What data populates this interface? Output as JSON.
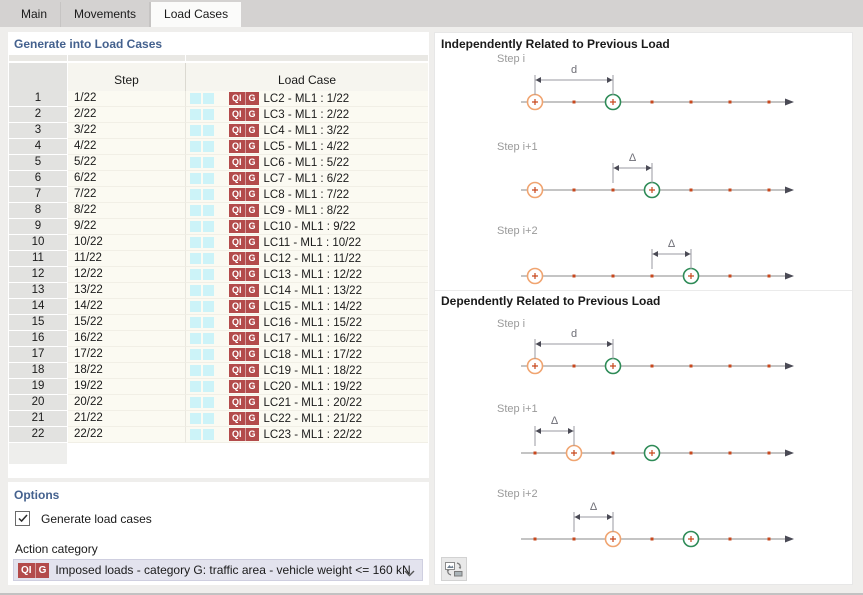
{
  "tabs": [
    {
      "label": "Main",
      "active": false
    },
    {
      "label": "Movements",
      "active": false
    },
    {
      "label": "Load Cases",
      "active": true
    }
  ],
  "table": {
    "title": "Generate into Load Cases",
    "col_step": "Step",
    "col_load_case": "Load Case",
    "badge": {
      "left": "QI",
      "right": "G"
    },
    "rows": [
      {
        "n": "1",
        "step": "1/22",
        "load_case": "LC2 - ML1 : 1/22"
      },
      {
        "n": "2",
        "step": "2/22",
        "load_case": "LC3 - ML1 : 2/22"
      },
      {
        "n": "3",
        "step": "3/22",
        "load_case": "LC4 - ML1 : 3/22"
      },
      {
        "n": "4",
        "step": "4/22",
        "load_case": "LC5 - ML1 : 4/22"
      },
      {
        "n": "5",
        "step": "5/22",
        "load_case": "LC6 - ML1 : 5/22"
      },
      {
        "n": "6",
        "step": "6/22",
        "load_case": "LC7 - ML1 : 6/22"
      },
      {
        "n": "7",
        "step": "7/22",
        "load_case": "LC8 - ML1 : 7/22"
      },
      {
        "n": "8",
        "step": "8/22",
        "load_case": "LC9 - ML1 : 8/22"
      },
      {
        "n": "9",
        "step": "9/22",
        "load_case": "LC10 - ML1 : 9/22"
      },
      {
        "n": "10",
        "step": "10/22",
        "load_case": "LC11 - ML1 : 10/22"
      },
      {
        "n": "11",
        "step": "11/22",
        "load_case": "LC12 - ML1 : 11/22"
      },
      {
        "n": "12",
        "step": "12/22",
        "load_case": "LC13 - ML1 : 12/22"
      },
      {
        "n": "13",
        "step": "13/22",
        "load_case": "LC14 - ML1 : 13/22"
      },
      {
        "n": "14",
        "step": "14/22",
        "load_case": "LC15 - ML1 : 14/22"
      },
      {
        "n": "15",
        "step": "15/22",
        "load_case": "LC16 - ML1 : 15/22"
      },
      {
        "n": "16",
        "step": "16/22",
        "load_case": "LC17 - ML1 : 16/22"
      },
      {
        "n": "17",
        "step": "17/22",
        "load_case": "LC18 - ML1 : 17/22"
      },
      {
        "n": "18",
        "step": "18/22",
        "load_case": "LC19 - ML1 : 18/22"
      },
      {
        "n": "19",
        "step": "19/22",
        "load_case": "LC20 - ML1 : 19/22"
      },
      {
        "n": "20",
        "step": "20/22",
        "load_case": "LC21 - ML1 : 20/22"
      },
      {
        "n": "21",
        "step": "21/22",
        "load_case": "LC22 - ML1 : 21/22"
      },
      {
        "n": "22",
        "step": "22/22",
        "load_case": "LC23 - ML1 : 22/22"
      }
    ]
  },
  "options": {
    "title": "Options",
    "generate_label": "Generate load cases",
    "generate_checked": true,
    "action_category_label": "Action category",
    "action_category_value": "Imposed loads - category G: traffic area - vehicle weight <= 160 kN"
  },
  "diagram": {
    "sections": [
      {
        "title": "Independently Related to Previous Load",
        "steps": [
          {
            "label": "Step i",
            "orange": 0,
            "green": 2,
            "dim_from": 0,
            "dim_to": 2,
            "dim_label": "d"
          },
          {
            "label": "Step i+1",
            "orange": 0,
            "green": 3,
            "dim_from": 2,
            "dim_to": 3,
            "dim_label": "Δ"
          },
          {
            "label": "Step i+2",
            "orange": 0,
            "green": 4,
            "dim_from": 3,
            "dim_to": 4,
            "dim_label": "Δ"
          }
        ]
      },
      {
        "title": "Dependently Related to Previous Load",
        "steps": [
          {
            "label": "Step i",
            "orange": 0,
            "green": 2,
            "dim_from": 0,
            "dim_to": 2,
            "dim_label": "d"
          },
          {
            "label": "Step i+1",
            "orange": 1,
            "green": 3,
            "dim_from": 0,
            "dim_to": 1,
            "dim_label": "Δ"
          },
          {
            "label": "Step i+2",
            "orange": 2,
            "green": 4,
            "dim_from": 1,
            "dim_to": 2,
            "dim_label": "Δ"
          }
        ]
      }
    ]
  },
  "colors": {
    "accent_blue": "#44618e",
    "badge_red": "#b34b4b",
    "cyan_cell": "#ccf3f8",
    "dot_orange": "#c8481d",
    "ring_orange": "#f0a470",
    "ring_green": "#2e8b57",
    "axis_gray": "#8a8a8a"
  }
}
